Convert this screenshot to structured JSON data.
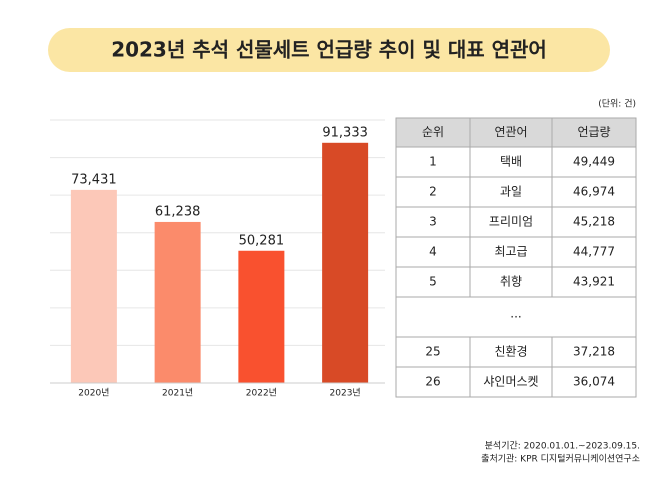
{
  "header": {
    "title": "2023년 추석 선물세트 언급량 추이 및 대표 연관어"
  },
  "chart_data": {
    "type": "bar",
    "categories": [
      "2020년",
      "2021년",
      "2022년",
      "2023년"
    ],
    "values": [
      73431,
      61238,
      50281,
      91333
    ],
    "value_labels": [
      "73,431",
      "61,238",
      "50,281",
      "91,333"
    ],
    "colors": [
      "#fcc8b8",
      "#fb8b6b",
      "#f9512f",
      "#d84a26"
    ],
    "ylim": [
      0,
      100000
    ]
  },
  "table": {
    "unit": "(단위: 건)",
    "columns": [
      "순위",
      "연관어",
      "언급량"
    ],
    "rows": [
      [
        "1",
        "택배",
        "49,449"
      ],
      [
        "2",
        "과일",
        "46,974"
      ],
      [
        "3",
        "프리미엄",
        "45,218"
      ],
      [
        "4",
        "최고급",
        "44,777"
      ],
      [
        "5",
        "취향",
        "43,921"
      ],
      [
        "..."
      ],
      [
        "25",
        "친환경",
        "37,218"
      ],
      [
        "26",
        "샤인머스켓",
        "36,074"
      ]
    ]
  },
  "footer": {
    "lines": [
      "분석기간: 2020.01.01.~2023.09.15.",
      "출처기관: KPR 디지털커뮤니케이션연구소"
    ]
  }
}
